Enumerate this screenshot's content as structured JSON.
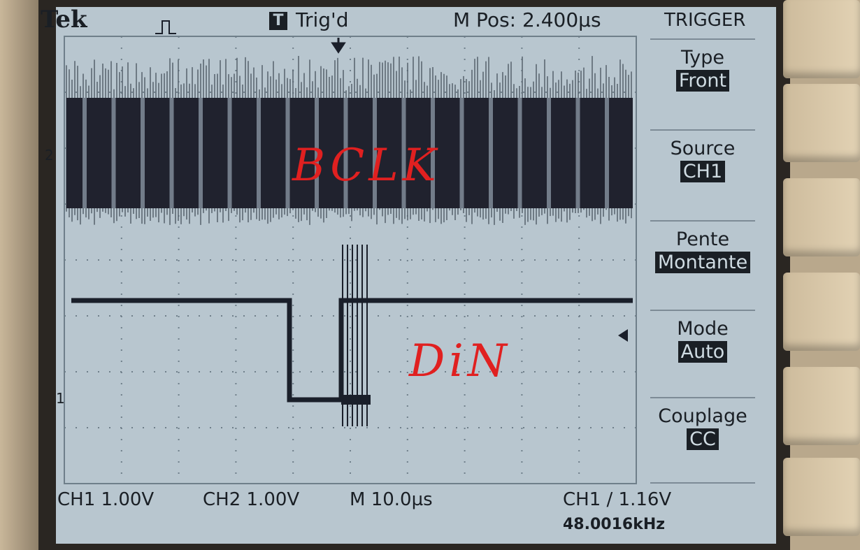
{
  "header": {
    "brand": "Tek",
    "acq_icon": "pulse-waveform-icon",
    "trigger_state_badge": "T",
    "trigger_state": "Trig'd",
    "position": "M Pos: 2.400µs"
  },
  "menu": {
    "title": "TRIGGER",
    "items": [
      {
        "label": "Type",
        "value": "Front"
      },
      {
        "label": "Source",
        "value": "CH1"
      },
      {
        "label": "Pente",
        "value": "Montante"
      },
      {
        "label": "Mode",
        "value": "Auto"
      },
      {
        "label": "Couplage",
        "value": "CC"
      }
    ]
  },
  "readout": {
    "ch1": "CH1  1.00V",
    "ch2": "CH2  1.00V",
    "timebase": "M 10.0µs",
    "trigger": "CH1 ∕ 1.16V",
    "frequency": "48.0016kHz"
  },
  "markers": {
    "ch2": "2",
    "ch1": "1"
  },
  "annotations": {
    "ch2_label": "BCLK",
    "ch1_label": "DiN"
  },
  "colors": {
    "screen": "#b8c6cf",
    "trace": "#1a1f2a",
    "annotation": "#e02020"
  }
}
